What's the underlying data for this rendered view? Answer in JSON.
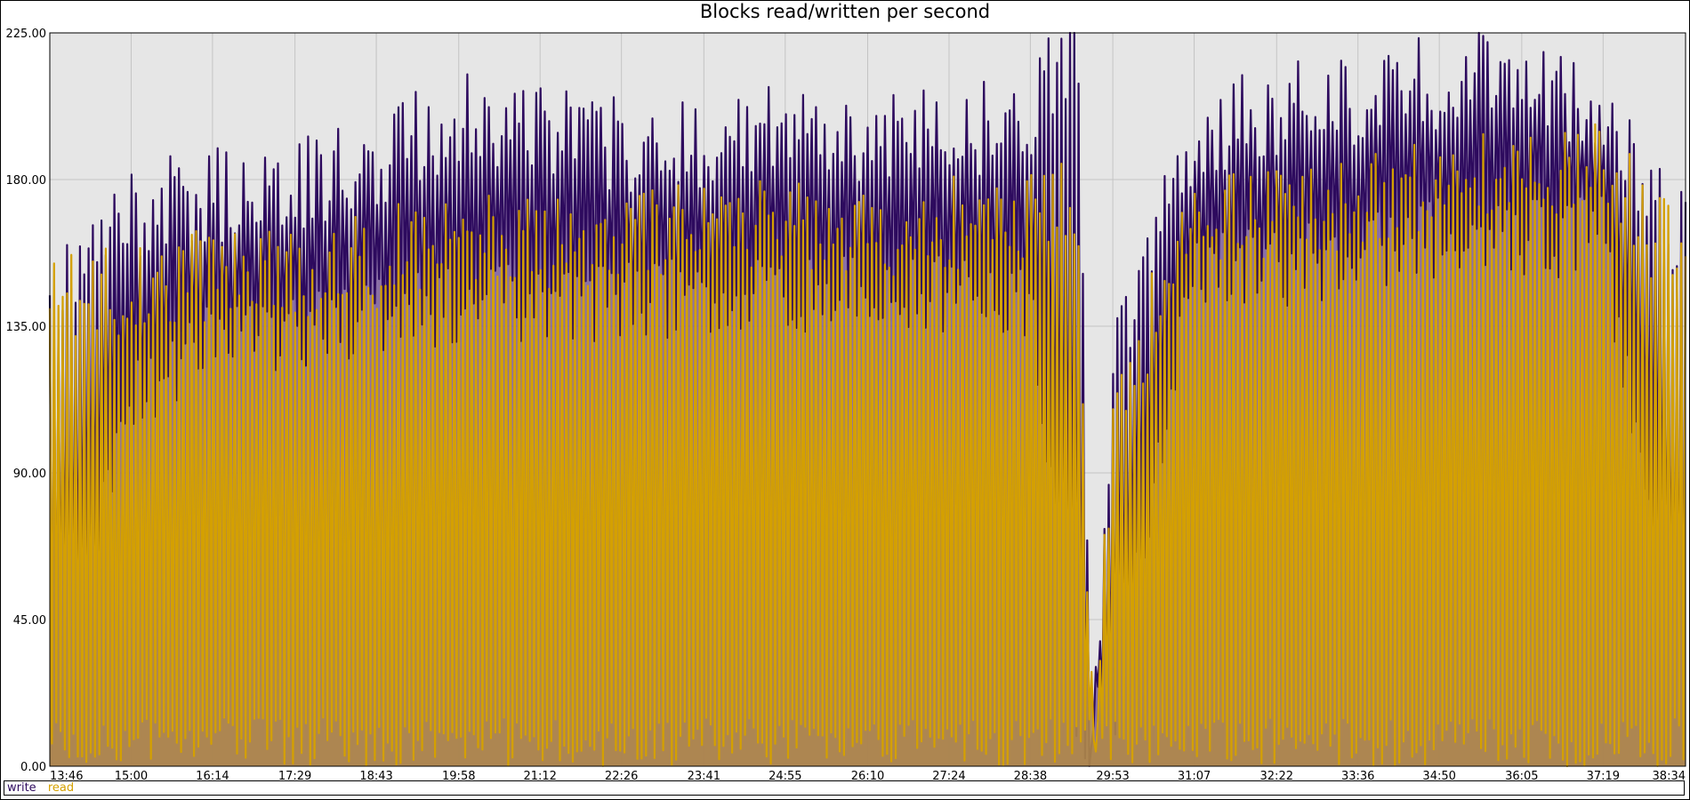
{
  "chart_data": {
    "type": "area",
    "title": "Blocks read/written per second",
    "xlabel": "",
    "ylabel": "",
    "ylim": [
      0,
      225
    ],
    "yticks": [
      "0.00",
      "45.00",
      "90.00",
      "135.00",
      "180.00",
      "225.00"
    ],
    "xticks": [
      "13:46",
      "15:00",
      "16:14",
      "17:29",
      "18:43",
      "19:58",
      "21:12",
      "22:26",
      "23:41",
      "24:55",
      "26:10",
      "27:24",
      "28:38",
      "29:53",
      "31:07",
      "32:22",
      "33:36",
      "34:50",
      "36:05",
      "37:19",
      "38:34"
    ],
    "grid": true,
    "legend_position": "bottom-left",
    "series": [
      {
        "name": "write",
        "color": "#2d0a5e",
        "fill": "#7a5a9a",
        "profile": [
          {
            "x": "13:46",
            "peak": 140,
            "trough": 0
          },
          {
            "x": "15:00",
            "peak": 170,
            "trough": 100
          },
          {
            "x": "16:14",
            "peak": 175,
            "trough": 118
          },
          {
            "x": "17:29",
            "peak": 178,
            "trough": 120
          },
          {
            "x": "18:43",
            "peak": 185,
            "trough": 125
          },
          {
            "x": "19:58",
            "peak": 200,
            "trough": 130
          },
          {
            "x": "21:12",
            "peak": 195,
            "trough": 130
          },
          {
            "x": "22:26",
            "peak": 190,
            "trough": 130
          },
          {
            "x": "23:41",
            "peak": 192,
            "trough": 132
          },
          {
            "x": "24:55",
            "peak": 195,
            "trough": 132
          },
          {
            "x": "26:10",
            "peak": 192,
            "trough": 132
          },
          {
            "x": "27:24",
            "peak": 195,
            "trough": 132
          },
          {
            "x": "28:38",
            "peak": 198,
            "trough": 130
          },
          {
            "x": "29:20",
            "peak": 225,
            "trough": 0
          },
          {
            "x": "29:35",
            "peak": 0,
            "trough": 0
          },
          {
            "x": "29:53",
            "peak": 120,
            "trough": 0
          },
          {
            "x": "31:07",
            "peak": 195,
            "trough": 140
          },
          {
            "x": "32:22",
            "peak": 200,
            "trough": 140
          },
          {
            "x": "33:36",
            "peak": 205,
            "trough": 145
          },
          {
            "x": "34:50",
            "peak": 210,
            "trough": 150
          },
          {
            "x": "36:05",
            "peak": 212,
            "trough": 150
          },
          {
            "x": "37:19",
            "peak": 200,
            "trough": 150
          },
          {
            "x": "38:34",
            "peak": 160,
            "trough": 0
          }
        ]
      },
      {
        "name": "read",
        "color": "#d4a000",
        "fill": "#b08848",
        "profile": [
          {
            "x": "13:46",
            "peak": 140,
            "trough": 0
          },
          {
            "x": "15:00",
            "peak": 148,
            "trough": 0
          },
          {
            "x": "16:14",
            "peak": 150,
            "trough": 0
          },
          {
            "x": "17:29",
            "peak": 150,
            "trough": 0
          },
          {
            "x": "18:43",
            "peak": 155,
            "trough": 0
          },
          {
            "x": "19:58",
            "peak": 165,
            "trough": 0
          },
          {
            "x": "21:12",
            "peak": 160,
            "trough": 0
          },
          {
            "x": "22:26",
            "peak": 162,
            "trough": 0
          },
          {
            "x": "23:41",
            "peak": 165,
            "trough": 0
          },
          {
            "x": "24:55",
            "peak": 165,
            "trough": 0
          },
          {
            "x": "26:10",
            "peak": 165,
            "trough": 0
          },
          {
            "x": "27:24",
            "peak": 166,
            "trough": 0
          },
          {
            "x": "28:38",
            "peak": 170,
            "trough": 0
          },
          {
            "x": "29:20",
            "peak": 170,
            "trough": 0
          },
          {
            "x": "29:35",
            "peak": 0,
            "trough": 0
          },
          {
            "x": "29:53",
            "peak": 110,
            "trough": 0
          },
          {
            "x": "31:07",
            "peak": 165,
            "trough": 0
          },
          {
            "x": "32:22",
            "peak": 170,
            "trough": 0
          },
          {
            "x": "33:36",
            "peak": 172,
            "trough": 0
          },
          {
            "x": "34:50",
            "peak": 178,
            "trough": 0
          },
          {
            "x": "36:05",
            "peak": 182,
            "trough": 0
          },
          {
            "x": "37:19",
            "peak": 185,
            "trough": 0
          },
          {
            "x": "38:34",
            "peak": 150,
            "trough": 0
          }
        ]
      }
    ]
  }
}
